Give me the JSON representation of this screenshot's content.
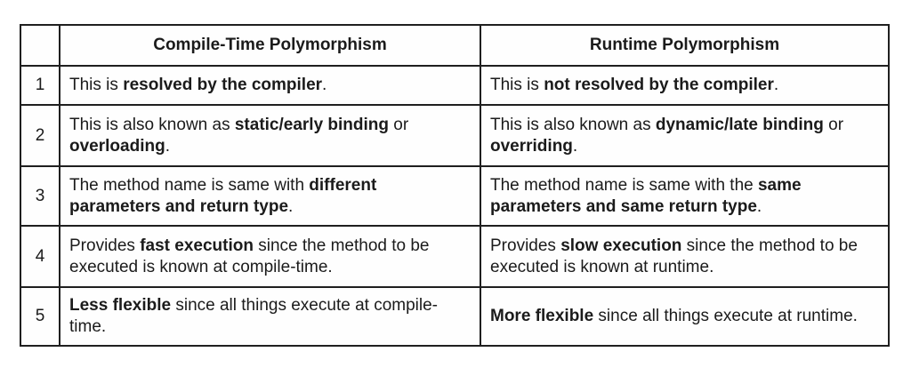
{
  "colors": {
    "border": "#1f1f1f",
    "text": "#1b1b1b",
    "background": "#ffffff"
  },
  "table": {
    "columns": [
      "",
      "Compile-Time Polymorphism",
      "Runtime Polymorphism"
    ],
    "rows": [
      {
        "num": "1",
        "left": [
          {
            "text": "This is ",
            "bold": false
          },
          {
            "text": "resolved by the compiler",
            "bold": true
          },
          {
            "text": ".",
            "bold": false
          }
        ],
        "right": [
          {
            "text": "This is ",
            "bold": false
          },
          {
            "text": "not resolved by the compiler",
            "bold": true
          },
          {
            "text": ".",
            "bold": false
          }
        ]
      },
      {
        "num": "2",
        "left": [
          {
            "text": "This is also known as ",
            "bold": false
          },
          {
            "text": "static/early binding",
            "bold": true
          },
          {
            "text": " or ",
            "bold": false
          },
          {
            "text": "overloading",
            "bold": true
          },
          {
            "text": ".",
            "bold": false
          }
        ],
        "right": [
          {
            "text": "This is also known as ",
            "bold": false
          },
          {
            "text": "dynamic/late binding",
            "bold": true
          },
          {
            "text": " or ",
            "bold": false
          },
          {
            "text": "overriding",
            "bold": true
          },
          {
            "text": ".",
            "bold": false
          }
        ]
      },
      {
        "num": "3",
        "left": [
          {
            "text": "The method name is same with ",
            "bold": false
          },
          {
            "text": "different parameters and return type",
            "bold": true
          },
          {
            "text": ".",
            "bold": false
          }
        ],
        "right": [
          {
            "text": "The method name is same with the ",
            "bold": false
          },
          {
            "text": "same parameters and same return type",
            "bold": true
          },
          {
            "text": ".",
            "bold": false
          }
        ]
      },
      {
        "num": "4",
        "left": [
          {
            "text": "Provides ",
            "bold": false
          },
          {
            "text": "fast execution",
            "bold": true
          },
          {
            "text": " since the method to be executed is known at compile-time.",
            "bold": false
          }
        ],
        "right": [
          {
            "text": "Provides ",
            "bold": false
          },
          {
            "text": "slow execution",
            "bold": true
          },
          {
            "text": " since the method to be executed is known at runtime.",
            "bold": false
          }
        ]
      },
      {
        "num": "5",
        "left": [
          {
            "text": "Less flexible",
            "bold": true
          },
          {
            "text": " since all things execute at compile-time.",
            "bold": false
          }
        ],
        "right": [
          {
            "text": "More flexible",
            "bold": true
          },
          {
            "text": " since all things execute at runtime.",
            "bold": false
          }
        ]
      }
    ]
  }
}
